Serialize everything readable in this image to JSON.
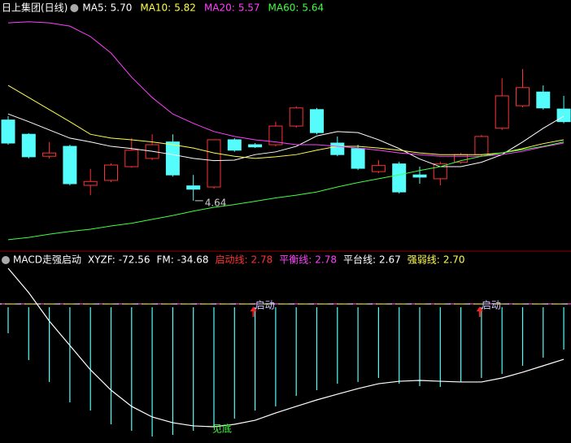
{
  "chart_data": [
    {
      "type": "candlestick",
      "title": "日上集团(日线)",
      "ylim": [
        3.78,
        8.0
      ],
      "up_color": "#ff3232",
      "down_color": "#54fcfc",
      "candles": {
        "open": [
          6.11,
          5.85,
          5.45,
          5.63,
          4.92,
          5.01,
          5.26,
          5.41,
          5.71,
          4.91,
          4.89,
          5.75,
          5.66,
          5.66,
          6.0,
          6.3,
          5.69,
          5.59,
          5.17,
          5.31,
          5.11,
          5.04,
          5.34,
          5.48,
          5.96,
          6.37,
          6.62,
          6.31
        ],
        "high": [
          6.18,
          5.87,
          5.71,
          5.66,
          5.22,
          5.32,
          5.78,
          5.85,
          5.85,
          5.11,
          5.75,
          5.78,
          5.69,
          6.08,
          6.36,
          6.33,
          5.81,
          5.66,
          5.38,
          5.35,
          5.26,
          5.35,
          5.51,
          5.84,
          6.87,
          7.04,
          6.74,
          6.55
        ],
        "low": [
          5.66,
          5.41,
          5.41,
          4.92,
          4.74,
          4.98,
          5.24,
          5.38,
          5.08,
          4.64,
          4.86,
          5.53,
          5.6,
          5.63,
          5.97,
          5.85,
          5.45,
          5.2,
          5.14,
          4.77,
          4.95,
          4.92,
          5.31,
          5.45,
          5.93,
          6.34,
          6.3,
          6.05
        ],
        "close": [
          5.69,
          5.44,
          5.51,
          4.95,
          4.99,
          5.29,
          5.56,
          5.66,
          5.11,
          4.85,
          5.75,
          5.56,
          5.62,
          6.0,
          6.33,
          5.88,
          5.48,
          5.23,
          5.28,
          4.8,
          5.07,
          5.31,
          5.48,
          5.81,
          6.55,
          6.7,
          6.33,
          6.08
        ]
      },
      "low_label_index": 9,
      "series": [
        {
          "name": "MA5:",
          "legend_value": {
            "value": 5.7,
            "label": "5.70"
          },
          "color": "#ffffff",
          "values": [
            6.22,
            6.08,
            5.93,
            5.78,
            5.71,
            5.63,
            5.59,
            5.54,
            5.48,
            5.41,
            5.37,
            5.38,
            5.48,
            5.53,
            5.63,
            5.82,
            5.9,
            5.88,
            5.75,
            5.59,
            5.4,
            5.26,
            5.26,
            5.34,
            5.48,
            5.71,
            5.96,
            6.18
          ]
        },
        {
          "name": "MA10:",
          "legend_value": 5.82,
          "color": "#ffff4a",
          "values": [
            6.74,
            6.52,
            6.3,
            6.08,
            5.85,
            5.78,
            5.75,
            5.71,
            5.66,
            5.6,
            5.51,
            5.45,
            5.41,
            5.44,
            5.48,
            5.56,
            5.63,
            5.63,
            5.6,
            5.56,
            5.51,
            5.48,
            5.48,
            5.48,
            5.51,
            5.59,
            5.68,
            5.75
          ]
        },
        {
          "name": "MA20:",
          "legend_value": 5.57,
          "color": "#ff40ff",
          "values": [
            7.88,
            7.9,
            7.88,
            7.82,
            7.63,
            7.33,
            6.89,
            6.52,
            6.22,
            6.05,
            5.9,
            5.81,
            5.75,
            5.71,
            5.66,
            5.66,
            5.63,
            5.6,
            5.56,
            5.51,
            5.48,
            5.45,
            5.45,
            5.45,
            5.48,
            5.54,
            5.62,
            5.69
          ]
        },
        {
          "name": "MA60:",
          "legend_value": 5.64,
          "color": "#40ff40",
          "values": [
            3.93,
            3.97,
            4.03,
            4.08,
            4.12,
            4.18,
            4.23,
            4.3,
            4.37,
            4.45,
            4.52,
            4.57,
            4.63,
            4.69,
            4.74,
            4.8,
            4.89,
            4.97,
            5.04,
            5.11,
            5.19,
            5.26,
            5.37,
            5.45,
            5.51,
            5.57,
            5.63,
            5.71
          ]
        }
      ]
    },
    {
      "type": "macd",
      "title": "MACD走强启动",
      "ylim": [
        -110,
        40
      ],
      "series": [
        {
          "name": "XYZF:",
          "legend_value": -72.56,
          "color": "#ffffff",
          "kind": "line",
          "values": [
            32,
            12,
            -11.3,
            -31.3,
            -51.3,
            -68,
            -81.3,
            -90,
            -94.7,
            -97.3,
            -98,
            -96,
            -92.7,
            -86.7,
            -81.3,
            -76,
            -71.3,
            -66.7,
            -62.7,
            -60.7,
            -60,
            -60.7,
            -61.3,
            -61.3,
            -58,
            -53.3,
            -48,
            -42.7
          ]
        },
        {
          "name": "FM:",
          "legend_value": -34.68,
          "color": "#54fcfc",
          "kind": "bar",
          "values": [
            -21.3,
            -43.3,
            -61.3,
            -78,
            -84.7,
            -96,
            -101.3,
            -106,
            -104.7,
            -101.3,
            -98,
            -91.3,
            -84.7,
            -81.3,
            -72.7,
            -68,
            -62.7,
            -61.3,
            -58,
            -62.7,
            -64.7,
            -65.3,
            -61.3,
            -58,
            -54.7,
            -48,
            -41.3,
            -34.68
          ]
        }
      ],
      "levels": [
        {
          "name": "启动线:",
          "value": 2.78,
          "color": "#ff3232"
        },
        {
          "name": "平衡线:",
          "value": 2.78,
          "color": "#ff40ff"
        },
        {
          "name": "平台线:",
          "value": 2.67,
          "color": "#ffffff"
        },
        {
          "name": "强弱线:",
          "value": {
            "value": 2.7,
            "label": "2.70"
          },
          "color": "#ffff4a"
        }
      ],
      "signals": [
        {
          "text": "启动",
          "index": 12
        },
        {
          "text": "启动",
          "index": 23
        }
      ],
      "bottom_signal": {
        "text": "见底",
        "index": 10
      }
    }
  ]
}
